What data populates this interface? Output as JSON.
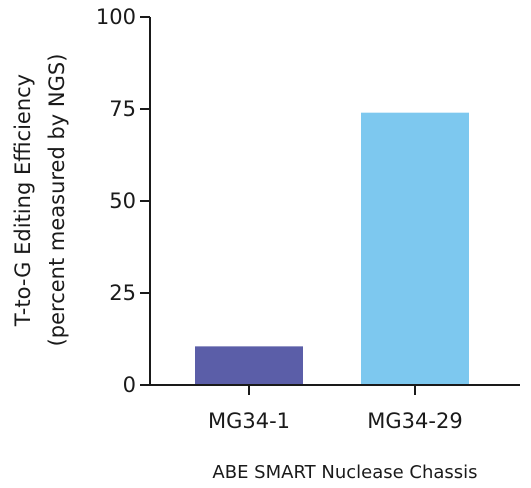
{
  "chart_data": {
    "type": "bar",
    "categories": [
      "MG34-1",
      "MG34-29"
    ],
    "values": [
      10.5,
      74
    ],
    "colors": [
      "#5b5ea8",
      "#7dc8ef"
    ],
    "ylabel": "T-to-G Editing Efficiency",
    "ylabel2": "(percent measured by NGS)",
    "xlabel": "ABE SMART Nuclease Chassis",
    "ylim": [
      0,
      100
    ],
    "yticks": [
      0,
      25,
      50,
      75,
      100
    ],
    "grid": false
  }
}
